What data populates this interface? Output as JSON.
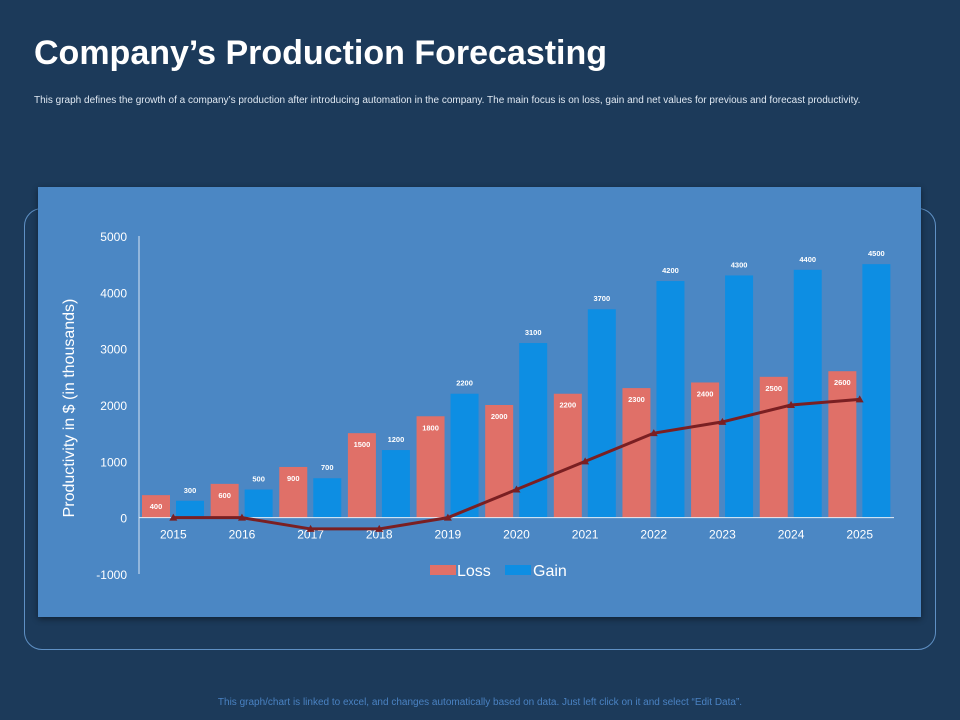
{
  "page": {
    "title": "Company’s Production Forecasting",
    "subtitle": "This graph defines the growth of a company’s production after introducing automation in the company. The main focus is on loss, gain and net values for previous and forecast productivity.",
    "footer": "This graph/chart is linked to excel, and changes automatically based on data. Just left click on it and select “Edit Data”."
  },
  "colors": {
    "background": "#1c3a5a",
    "panel": "#4b87c4",
    "loss": "#e07068",
    "gain": "#0d8ee3",
    "net_line": "#7a1f22"
  },
  "chart_data": {
    "type": "bar",
    "categories": [
      "2015",
      "2016",
      "2017",
      "2018",
      "2019",
      "2020",
      "2021",
      "2022",
      "2023",
      "2024",
      "2025"
    ],
    "series": [
      {
        "name": "Loss",
        "values": [
          400,
          600,
          900,
          1500,
          1800,
          2000,
          2200,
          2300,
          2400,
          2500,
          2600
        ]
      },
      {
        "name": "Gain",
        "values": [
          300,
          500,
          700,
          1200,
          2200,
          3100,
          3700,
          4200,
          4300,
          4400,
          4500
        ]
      }
    ],
    "net_line": {
      "values": [
        0,
        0,
        -200,
        -200,
        0,
        500,
        1000,
        1500,
        1700,
        2000,
        2100
      ]
    },
    "ylabel": "Productivity in $ (in thousands)",
    "xlabel": "",
    "ylim": [
      -1000,
      5000
    ],
    "yticks": [
      5000,
      4000,
      3000,
      2000,
      1000,
      0,
      -1000
    ],
    "grid": false,
    "legend": "bottom",
    "data_labels": true
  }
}
